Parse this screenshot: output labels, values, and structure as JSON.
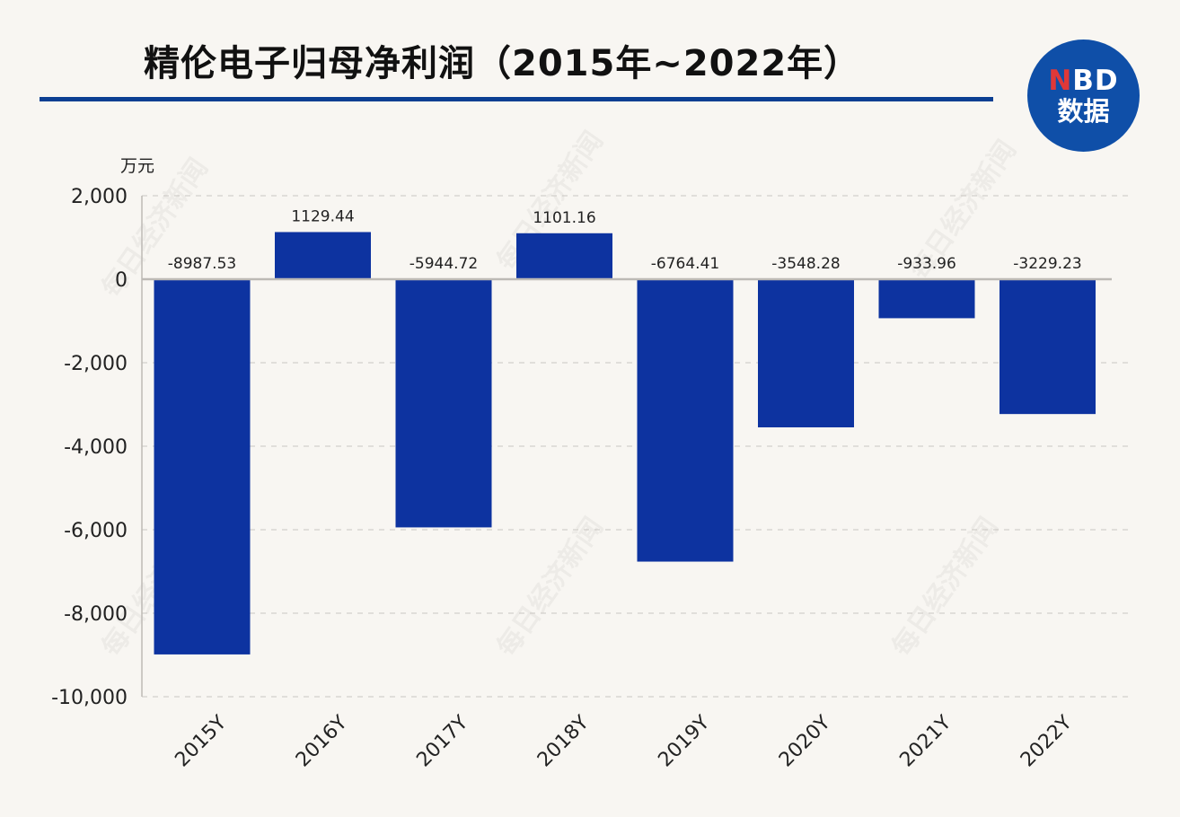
{
  "title": "精伦电子归母净利润（2015年~2022年）",
  "logo": {
    "top_prefix": "N",
    "top_rest": "BD",
    "bottom": "数据"
  },
  "watermark": "每日经济新闻",
  "colors": {
    "bar": "#0d33a0",
    "title_rule": "#0c3f92",
    "logo": "#0f4fa8",
    "logo_accent": "#e03838"
  },
  "chart_data": {
    "type": "bar",
    "title": "精伦电子归母净利润（2015年~2022年）",
    "ylabel": "万元",
    "xlabel": "",
    "categories": [
      "2015Y",
      "2016Y",
      "2017Y",
      "2018Y",
      "2019Y",
      "2020Y",
      "2021Y",
      "2022Y"
    ],
    "values": [
      -8987.53,
      1129.44,
      -5944.72,
      1101.16,
      -6764.41,
      -3548.28,
      -933.96,
      -3229.23
    ],
    "value_labels": [
      "-8987.53",
      "1129.44",
      "-5944.72",
      "1101.16",
      "-6764.41",
      "-3548.28",
      "-933.96",
      "-3229.23"
    ],
    "ylim": [
      -10000,
      2000
    ],
    "yticks": [
      2000,
      0,
      -2000,
      -4000,
      -6000,
      -8000,
      -10000
    ],
    "ytick_labels": [
      "2,000",
      "0",
      "-2,000",
      "-4,000",
      "-6,000",
      "-8,000",
      "-10,000"
    ],
    "grid": true,
    "legend": "none"
  }
}
